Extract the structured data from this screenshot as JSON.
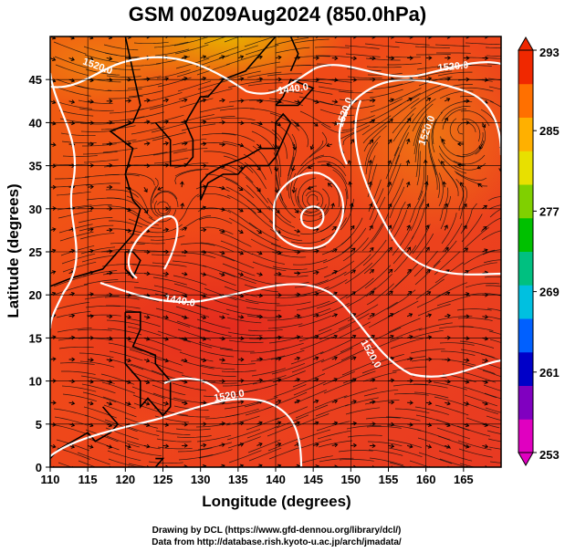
{
  "title": "GSM 00Z09Aug2024 (850.0hPa)",
  "xaxis": {
    "label": "Longitude (degrees)",
    "ticks": [
      "110",
      "115",
      "120",
      "125",
      "130",
      "135",
      "140",
      "145",
      "150",
      "155",
      "160",
      "165"
    ]
  },
  "yaxis": {
    "label": "Latitude  (degrees)",
    "ticks": [
      "0",
      "5",
      "10",
      "15",
      "20",
      "25",
      "30",
      "35",
      "40",
      "45"
    ]
  },
  "colorbar": {
    "ticks": [
      "253",
      "261",
      "269",
      "277",
      "285",
      "293"
    ],
    "colors": [
      "#e000c0",
      "#8000c0",
      "#0000c8",
      "#0060ff",
      "#00c0e0",
      "#00c080",
      "#00c000",
      "#80d000",
      "#e8e000",
      "#ffb000",
      "#ff7000",
      "#f02800"
    ]
  },
  "contour_labels": [
    "1440.0",
    "1520.0",
    "1520.0",
    "1520.0",
    "1440.0",
    "1520.0",
    "1520.0",
    "1520.0"
  ],
  "credits": {
    "line1": "Drawing by DCL (https://www.gfd-dennou.org/library/dcl/)",
    "line2": "Data from http://database.rish.kyoto-u.ac.jp/arch/jmadata/"
  },
  "map": {
    "lon_range": [
      110,
      170
    ],
    "lat_range": [
      0,
      50
    ],
    "variable_range": [
      253,
      293
    ],
    "typhoon_center": {
      "lon": 145,
      "lat": 31
    },
    "secondary_low": {
      "lon": 125,
      "lat": 30
    },
    "high_center": {
      "lon": 165,
      "lat": 39
    }
  }
}
